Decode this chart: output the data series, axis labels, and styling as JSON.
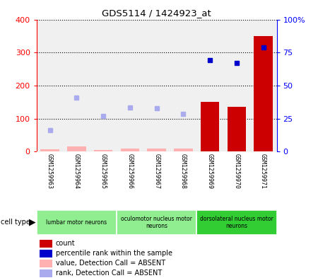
{
  "title": "GDS5114 / 1424923_at",
  "samples": [
    "GSM1259963",
    "GSM1259964",
    "GSM1259965",
    "GSM1259966",
    "GSM1259967",
    "GSM1259968",
    "GSM1259969",
    "GSM1259970",
    "GSM1259971"
  ],
  "count_values": [
    7,
    15,
    5,
    8,
    10,
    8,
    150,
    135,
    350
  ],
  "count_absent": [
    true,
    true,
    true,
    true,
    true,
    true,
    false,
    false,
    false
  ],
  "rank_values": [
    65,
    163,
    108,
    133,
    132,
    115,
    277,
    268,
    315
  ],
  "rank_absent": [
    true,
    true,
    true,
    true,
    true,
    true,
    false,
    false,
    false
  ],
  "ylim_left": [
    0,
    400
  ],
  "ylim_right": [
    0,
    100
  ],
  "yticks_left": [
    0,
    100,
    200,
    300,
    400
  ],
  "ytick_labels_left": [
    "0",
    "100",
    "200",
    "300",
    "400"
  ],
  "yticks_right_pct": [
    0,
    25,
    50,
    75,
    100
  ],
  "ytick_labels_right": [
    "0",
    "25",
    "50",
    "75",
    "100%"
  ],
  "cell_groups": [
    {
      "label": "lumbar motor neurons",
      "start": 0,
      "end": 3,
      "color": "#90ee90"
    },
    {
      "label": "oculomotor nucleus motor\nneurons",
      "start": 3,
      "end": 6,
      "color": "#90ee90"
    },
    {
      "label": "dorsolateral nucleus motor\nneurons",
      "start": 6,
      "end": 9,
      "color": "#32cd32"
    }
  ],
  "bar_color_present": "#cc0000",
  "bar_color_absent": "#ffb0b0",
  "dot_color_present": "#0000cc",
  "dot_color_absent": "#aaaaee",
  "background_plot": "#f0f0f0",
  "background_sample": "#d0d0d0",
  "legend_items": [
    {
      "label": "count",
      "color": "#cc0000"
    },
    {
      "label": "percentile rank within the sample",
      "color": "#0000cc"
    },
    {
      "label": "value, Detection Call = ABSENT",
      "color": "#ffb0b0"
    },
    {
      "label": "rank, Detection Call = ABSENT",
      "color": "#aaaaee"
    }
  ]
}
